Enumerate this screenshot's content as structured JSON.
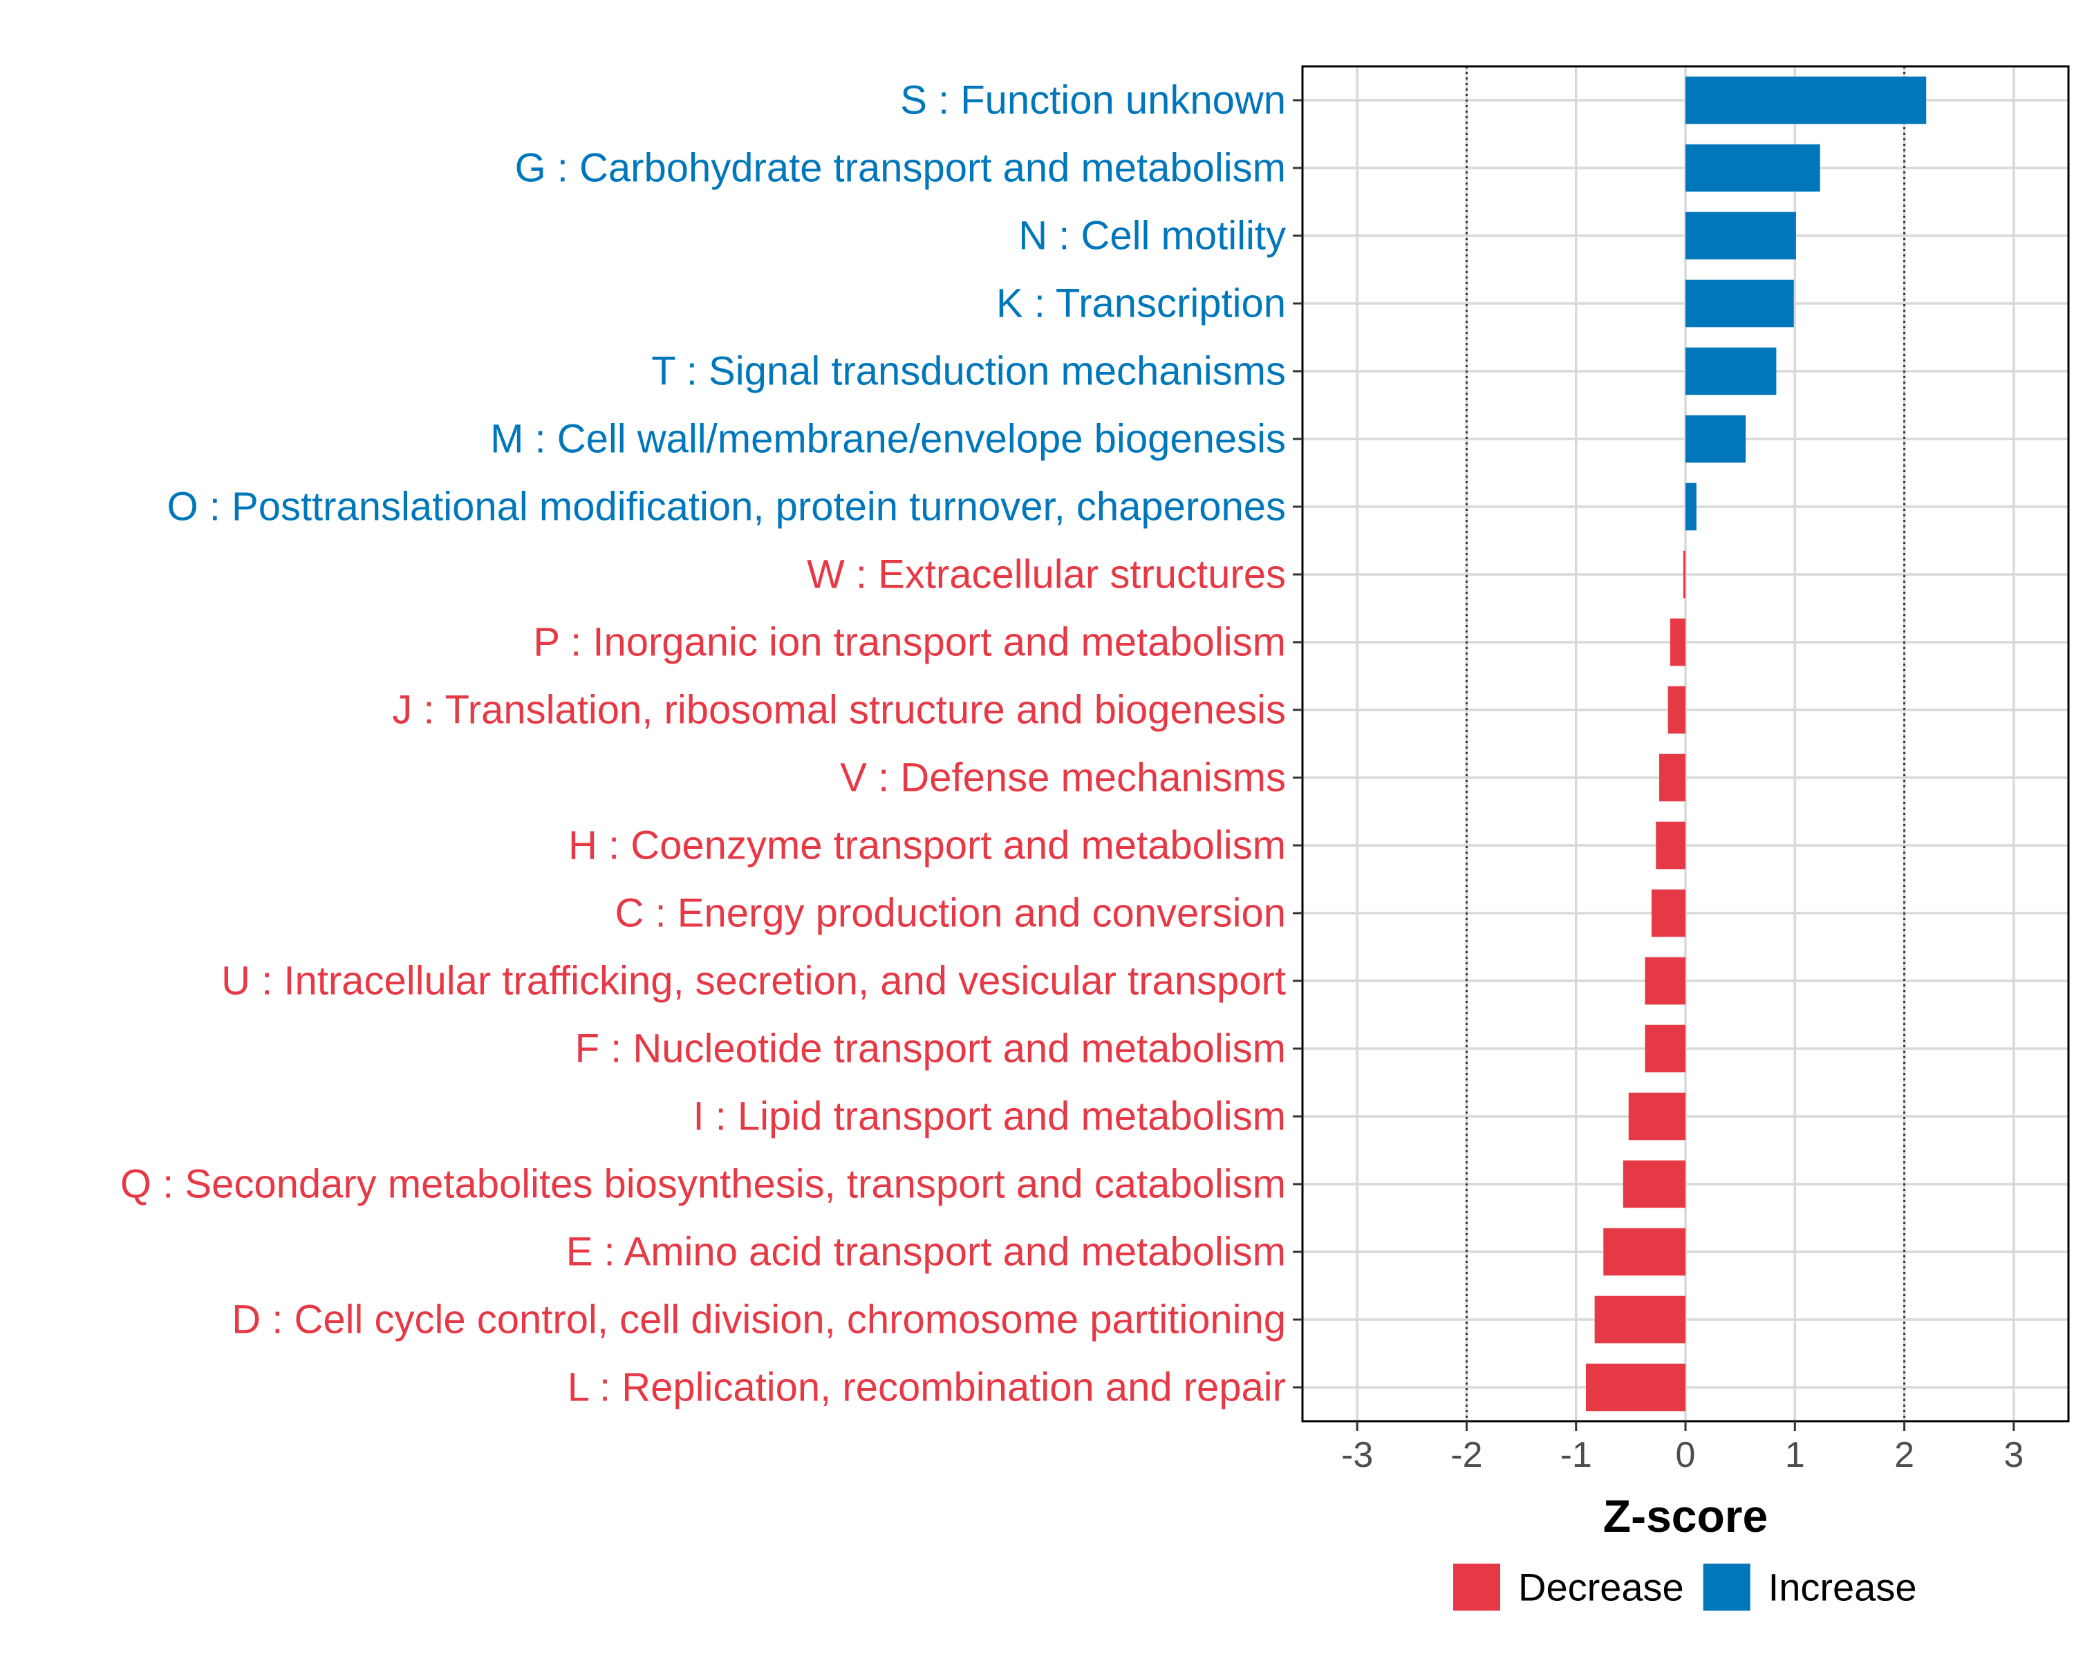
{
  "chart_data": {
    "type": "bar",
    "orientation": "horizontal",
    "title": "",
    "xlabel": "Z-score",
    "ylabel": "",
    "xlim": [
      -3.5,
      3.5
    ],
    "xticks": [
      -3,
      -2,
      -1,
      0,
      1,
      2,
      3
    ],
    "xtick_labels": [
      "-3",
      "-2",
      "-1",
      "0",
      "1",
      "2",
      "3"
    ],
    "reference_lines": [
      -2,
      2
    ],
    "grid": true,
    "legend_position": "bottom",
    "colors": {
      "Decrease": "#e63946",
      "Increase": "#0077bb"
    },
    "categories": [
      "S : Function unknown",
      "G : Carbohydrate transport and metabolism",
      "N : Cell motility",
      "K : Transcription",
      "T : Signal transduction mechanisms",
      "M : Cell wall/membrane/envelope biogenesis",
      "O : Posttranslational modification, protein turnover, chaperones",
      "W : Extracellular structures",
      "P : Inorganic ion transport and metabolism",
      "J : Translation, ribosomal structure and biogenesis",
      "V : Defense mechanisms",
      "H : Coenzyme transport and metabolism",
      "C : Energy production and conversion",
      "U : Intracellular trafficking, secretion, and vesicular transport",
      "F : Nucleotide transport and metabolism",
      "I : Lipid transport and metabolism",
      "Q : Secondary metabolites biosynthesis, transport and catabolism",
      "E : Amino acid transport and metabolism",
      "D : Cell cycle control, cell division, chromosome partitioning",
      "L : Replication, recombination and repair"
    ],
    "values": [
      2.2,
      1.23,
      1.01,
      0.99,
      0.83,
      0.55,
      0.1,
      -0.02,
      -0.14,
      -0.16,
      -0.24,
      -0.27,
      -0.31,
      -0.37,
      -0.37,
      -0.52,
      -0.57,
      -0.75,
      -0.83,
      -0.91
    ],
    "groups": [
      "Increase",
      "Increase",
      "Increase",
      "Increase",
      "Increase",
      "Increase",
      "Increase",
      "Decrease",
      "Decrease",
      "Decrease",
      "Decrease",
      "Decrease",
      "Decrease",
      "Decrease",
      "Decrease",
      "Decrease",
      "Decrease",
      "Decrease",
      "Decrease",
      "Decrease"
    ],
    "legend": [
      {
        "name": "Decrease",
        "color": "#e63946"
      },
      {
        "name": "Increase",
        "color": "#0077bb"
      }
    ]
  }
}
